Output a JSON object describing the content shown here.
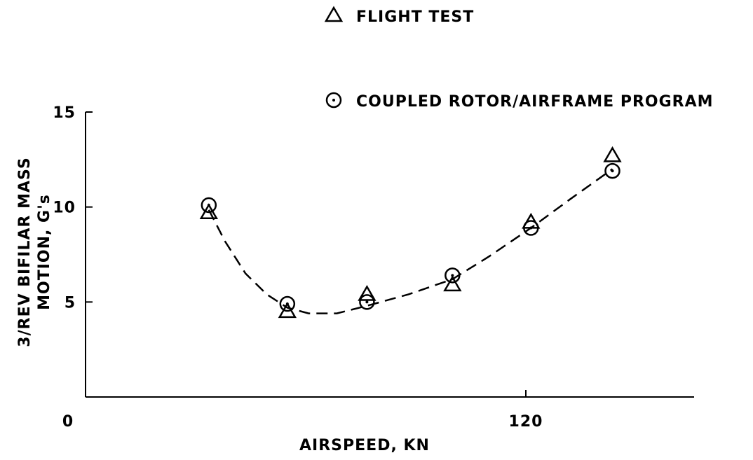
{
  "chart_data": {
    "type": "scatter",
    "x_label": "AIRSPEED, KN",
    "y_label": [
      "3/REV BIFILAR MASS",
      "MOTION, G's"
    ],
    "xlim": [
      0,
      166
    ],
    "ylim": [
      0,
      15
    ],
    "xticks": [
      0,
      120
    ],
    "yticks": [
      5,
      10,
      15
    ],
    "series": [
      {
        "name": "FLIGHT TEST",
        "color": "#000000",
        "marker": "triangle",
        "x": [
          33.6,
          55,
          76.7,
          100,
          121.4,
          143.6
        ],
        "values": [
          9.7,
          4.5,
          5.4,
          5.9,
          9.2,
          12.7
        ]
      },
      {
        "name": "COUPLED ROTOR/AIRFRAME PROGRAM",
        "color": "#000000",
        "marker": "circle",
        "x": [
          33.6,
          55,
          76.7,
          100,
          121.4,
          143.6
        ],
        "values": [
          10.1,
          4.9,
          5.0,
          6.4,
          8.9,
          11.9
        ]
      }
    ],
    "fit_curve": {
      "color": "#000000",
      "dashed": true,
      "x": [
        33.6,
        38,
        43.6,
        49.4,
        55,
        60.8,
        68.5,
        76.7,
        88,
        100,
        110,
        121.4,
        132,
        143.6
      ],
      "values": [
        9.85,
        8.2,
        6.5,
        5.4,
        4.7,
        4.4,
        4.4,
        4.8,
        5.4,
        6.2,
        7.4,
        8.9,
        10.4,
        12.0
      ]
    }
  }
}
